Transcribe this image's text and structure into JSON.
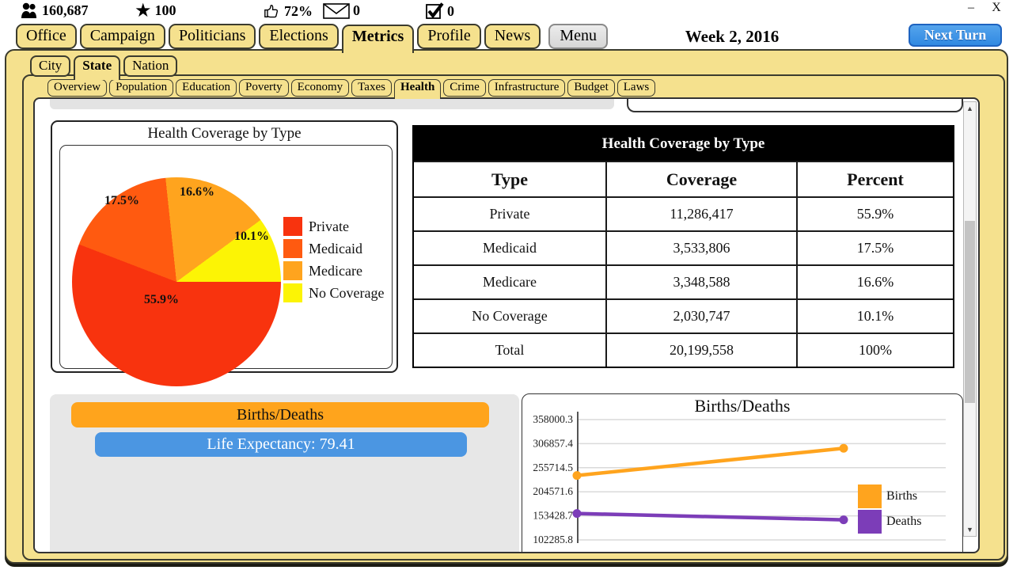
{
  "stats": {
    "population": "160,687",
    "reputation": "100",
    "approval": "72%",
    "mail_count": "0",
    "tasks_count": "0"
  },
  "window": {
    "minimize_label": "–",
    "close_label": "X",
    "date": "Week 2, 2016",
    "menu_label": "Menu",
    "next_turn_label": "Next Turn"
  },
  "tabs": {
    "main": [
      "Office",
      "Campaign",
      "Politicians",
      "Elections",
      "Metrics",
      "Profile",
      "News"
    ],
    "main_active": "Metrics",
    "region": [
      "City",
      "State",
      "Nation"
    ],
    "region_active": "State",
    "metrics": [
      "Overview",
      "Population",
      "Education",
      "Poverty",
      "Economy",
      "Taxes",
      "Health",
      "Crime",
      "Infrastructure",
      "Budget",
      "Laws"
    ],
    "metrics_active": "Health"
  },
  "table": {
    "title": "Health Coverage by Type",
    "columns": [
      "Type",
      "Coverage",
      "Percent"
    ],
    "rows": [
      [
        "Private",
        "11,286,417",
        "55.9%"
      ],
      [
        "Medicaid",
        "3,533,806",
        "17.5%"
      ],
      [
        "Medicare",
        "3,348,588",
        "16.6%"
      ],
      [
        "No Coverage",
        "2,030,747",
        "10.1%"
      ],
      [
        "Total",
        "20,199,558",
        "100%"
      ]
    ]
  },
  "births_deaths": {
    "header_label": "Births/Deaths",
    "header_color": "#FFA41C",
    "life_expectancy_label": "Life Expectancy: 79.41",
    "life_expectancy_color": "#4B96E2"
  },
  "chart_data": [
    {
      "type": "pie",
      "title": "Health Coverage by Type",
      "labels": [
        "Private",
        "Medicaid",
        "Medicare",
        "No Coverage"
      ],
      "values": [
        55.9,
        17.5,
        16.6,
        10.1
      ],
      "value_labels": [
        "55.9%",
        "17.5%",
        "16.6%",
        "10.1%"
      ],
      "colors": [
        "#F8330E",
        "#FF5A10",
        "#FFA41E",
        "#FCF405"
      ],
      "legend_position": "right",
      "start_angle_deg": 90,
      "direction": "clockwise"
    },
    {
      "type": "line",
      "title": "Births/Deaths",
      "yticks": [
        "358000.3",
        "306857.4",
        "255714.5",
        "204571.6",
        "153428.7",
        "102285.8"
      ],
      "ylim": [
        102285.8,
        358000.3
      ],
      "grid": true,
      "legend_position": "right",
      "series": [
        {
          "name": "Births",
          "color": "#FFA41E",
          "values": [
            239200,
            297000
          ]
        },
        {
          "name": "Deaths",
          "color": "#7C3DB8",
          "values": [
            158400,
            145000
          ]
        }
      ]
    }
  ]
}
